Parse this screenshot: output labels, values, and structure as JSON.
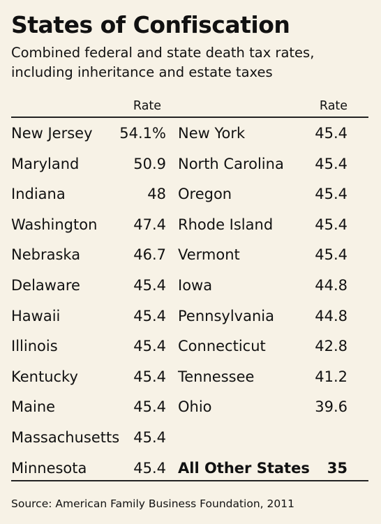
{
  "header": {
    "title": "States of Confiscation",
    "subtitle": "Combined federal and state death tax rates, including inheritance and estate taxes"
  },
  "columns": {
    "rate_left": "Rate",
    "rate_right": "Rate"
  },
  "colors": {
    "background": "#f7f2e6",
    "text": "#111111",
    "rule": "#222222"
  },
  "chart_data": {
    "type": "table",
    "title": "States of Confiscation",
    "subtitle": "Combined federal and state death tax rates, including inheritance and estate taxes",
    "columns": [
      "",
      "Rate",
      "",
      "Rate"
    ],
    "rows": [
      {
        "left_state": "New Jersey",
        "left_rate": "54.1%",
        "right_state": "New York",
        "right_rate": "45.4"
      },
      {
        "left_state": "Maryland",
        "left_rate": "50.9",
        "right_state": "North Carolina",
        "right_rate": "45.4"
      },
      {
        "left_state": "Indiana",
        "left_rate": "48",
        "right_state": "Oregon",
        "right_rate": "45.4"
      },
      {
        "left_state": "Washington",
        "left_rate": "47.4",
        "right_state": "Rhode Island",
        "right_rate": "45.4"
      },
      {
        "left_state": "Nebraska",
        "left_rate": "46.7",
        "right_state": "Vermont",
        "right_rate": "45.4"
      },
      {
        "left_state": "Delaware",
        "left_rate": "45.4",
        "right_state": "Iowa",
        "right_rate": "44.8"
      },
      {
        "left_state": "Hawaii",
        "left_rate": "45.4",
        "right_state": "Pennsylvania",
        "right_rate": "44.8"
      },
      {
        "left_state": "Illinois",
        "left_rate": "45.4",
        "right_state": "Connecticut",
        "right_rate": "42.8"
      },
      {
        "left_state": "Kentucky",
        "left_rate": "45.4",
        "right_state": "Tennessee",
        "right_rate": "41.2"
      },
      {
        "left_state": "Maine",
        "left_rate": "45.4",
        "right_state": "Ohio",
        "right_rate": "39.6"
      },
      {
        "left_state": "Massachusetts",
        "left_rate": "45.4",
        "right_state": "",
        "right_rate": ""
      },
      {
        "left_state": "Minnesota",
        "left_rate": "45.4",
        "right_state": "All Other States",
        "right_rate": "35",
        "right_bold": true
      }
    ]
  },
  "footer": {
    "source": "Source: American Family Business Foundation, 2011"
  }
}
